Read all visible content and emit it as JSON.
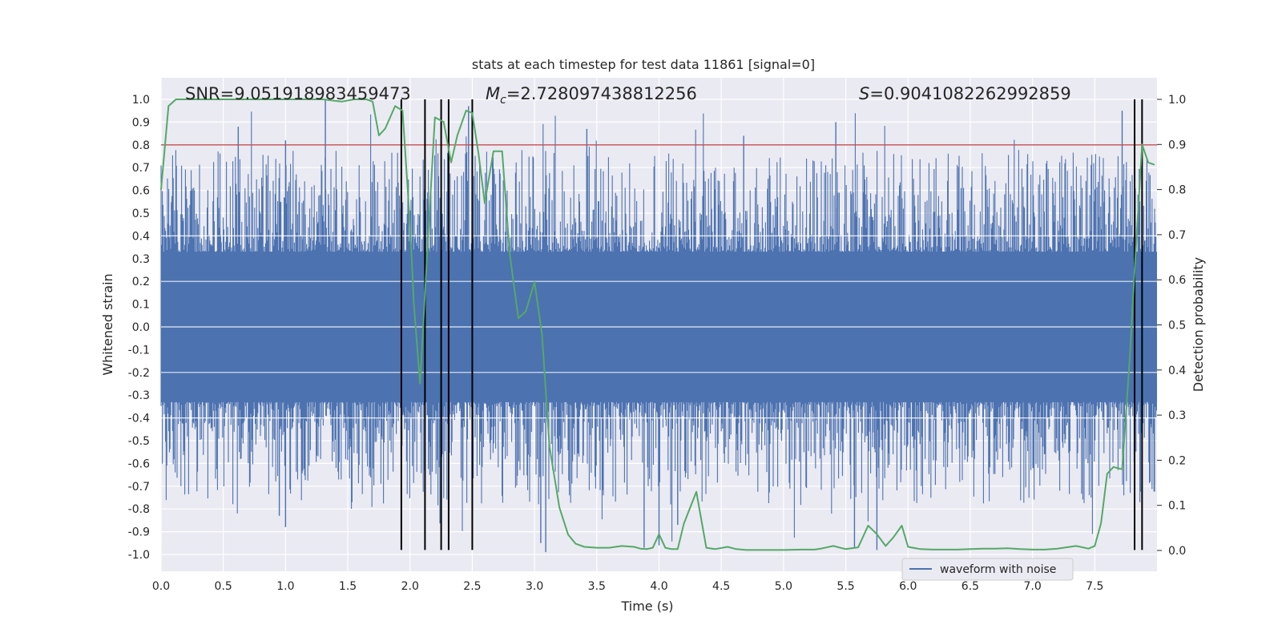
{
  "chart_data": {
    "type": "line",
    "title": "stats at each timestep for test data 11861 [signal=0]",
    "xlabel": "Time (s)",
    "ylabel_left": "Whitened strain",
    "ylabel_right": "Detection probability",
    "xlim": [
      0.0,
      8.0
    ],
    "ylim_left": [
      -1.08,
      1.1
    ],
    "ylim_right": [
      0.0,
      1.0
    ],
    "grid": true,
    "x_ticks": [
      "0.0",
      "0.5",
      "1.0",
      "1.5",
      "2.0",
      "2.5",
      "3.0",
      "3.5",
      "4.0",
      "4.5",
      "5.0",
      "5.5",
      "6.0",
      "6.5",
      "7.0",
      "7.5"
    ],
    "x_tick_values": [
      0,
      0.5,
      1,
      1.5,
      2,
      2.5,
      3,
      3.5,
      4,
      4.5,
      5,
      5.5,
      6,
      6.5,
      7,
      7.5
    ],
    "y_left_ticks": [
      "1.0",
      "0.9",
      "0.8",
      "0.7",
      "0.6",
      "0.5",
      "0.4",
      "0.3",
      "0.2",
      "0.1",
      "0.0",
      "-0.1",
      "-0.2",
      "-0.3",
      "-0.4",
      "-0.5",
      "-0.6",
      "-0.7",
      "-0.8",
      "-0.9",
      "-1.0"
    ],
    "y_left_tick_values": [
      1,
      0.9,
      0.8,
      0.7,
      0.6,
      0.5,
      0.4,
      0.3,
      0.2,
      0.1,
      0,
      -0.1,
      -0.2,
      -0.3,
      -0.4,
      -0.5,
      -0.6,
      -0.7,
      -0.8,
      -0.9,
      -1.0
    ],
    "y_right_ticks": [
      "1.0",
      "0.9",
      "0.8",
      "0.7",
      "0.6",
      "0.5",
      "0.4",
      "0.3",
      "0.2",
      "0.1",
      "0.0"
    ],
    "y_right_tick_values": [
      1,
      0.9,
      0.8,
      0.7,
      0.6,
      0.5,
      0.4,
      0.3,
      0.2,
      0.1,
      0
    ],
    "annotations": {
      "snr": "SNR=9.051918983459473",
      "mc_symbol": "M",
      "mc_sub": "c",
      "mc_value": "=2.728097438812256",
      "s_symbol": "S",
      "s_value": "=0.9041082262992859"
    },
    "threshold": {
      "value": 0.8,
      "axis": "left",
      "color": "#c44e52"
    },
    "vertical_lines": [
      1.93,
      2.12,
      2.25,
      2.31,
      2.5,
      7.82,
      7.88
    ],
    "vline_range_left": [
      -0.98,
      1.0
    ],
    "waveform": {
      "name": "waveform with noise",
      "color": "#4c72b0",
      "core_band": [
        -0.33,
        0.33
      ],
      "max_amplitude": 1.0,
      "min_amplitude": -1.0
    },
    "detection_probability": {
      "name": "detection probability",
      "color": "#55a868",
      "x": [
        0.0,
        0.06,
        0.12,
        0.2,
        0.3,
        0.5,
        0.7,
        0.9,
        1.1,
        1.3,
        1.45,
        1.55,
        1.65,
        1.7,
        1.75,
        1.8,
        1.88,
        1.94,
        2.0,
        2.03,
        2.08,
        2.14,
        2.2,
        2.27,
        2.33,
        2.38,
        2.45,
        2.5,
        2.55,
        2.6,
        2.67,
        2.74,
        2.8,
        2.87,
        2.93,
        3.0,
        3.06,
        3.12,
        3.2,
        3.27,
        3.33,
        3.4,
        3.5,
        3.6,
        3.7,
        3.8,
        3.85,
        3.9,
        3.95,
        4.0,
        4.05,
        4.1,
        4.15,
        4.2,
        4.3,
        4.38,
        4.45,
        4.55,
        4.62,
        4.7,
        4.85,
        5.0,
        5.15,
        5.25,
        5.3,
        5.4,
        5.5,
        5.6,
        5.68,
        5.75,
        5.82,
        5.88,
        5.95,
        6.0,
        6.1,
        6.2,
        6.3,
        6.4,
        6.5,
        6.6,
        6.7,
        6.8,
        6.9,
        7.0,
        7.1,
        7.2,
        7.3,
        7.35,
        7.45,
        7.5,
        7.55,
        7.6,
        7.65,
        7.72,
        7.78,
        7.82,
        7.88,
        7.93,
        7.98
      ],
      "y": [
        0.8,
        0.985,
        1.0,
        1.0,
        1.0,
        1.0,
        1.0,
        1.0,
        1.0,
        1.0,
        0.995,
        1.0,
        1.0,
        0.995,
        0.92,
        0.935,
        0.985,
        0.975,
        0.72,
        0.55,
        0.37,
        0.67,
        0.96,
        0.95,
        0.86,
        0.92,
        0.975,
        0.97,
        0.88,
        0.77,
        0.885,
        0.885,
        0.66,
        0.515,
        0.53,
        0.595,
        0.48,
        0.23,
        0.095,
        0.035,
        0.015,
        0.008,
        0.006,
        0.006,
        0.01,
        0.008,
        0.004,
        0.003,
        0.006,
        0.036,
        0.006,
        0.003,
        0.003,
        0.06,
        0.13,
        0.006,
        0.003,
        0.008,
        0.003,
        0.001,
        0.001,
        0.001,
        0.002,
        0.002,
        0.004,
        0.01,
        0.003,
        0.007,
        0.055,
        0.036,
        0.01,
        0.028,
        0.055,
        0.008,
        0.003,
        0.002,
        0.002,
        0.002,
        0.003,
        0.004,
        0.004,
        0.005,
        0.003,
        0.002,
        0.002,
        0.004,
        0.008,
        0.01,
        0.004,
        0.01,
        0.06,
        0.17,
        0.185,
        0.18,
        0.42,
        0.62,
        0.9,
        0.86,
        0.855
      ]
    },
    "legend": {
      "entries": [
        "waveform with noise"
      ],
      "placement": "bottom-right"
    }
  }
}
